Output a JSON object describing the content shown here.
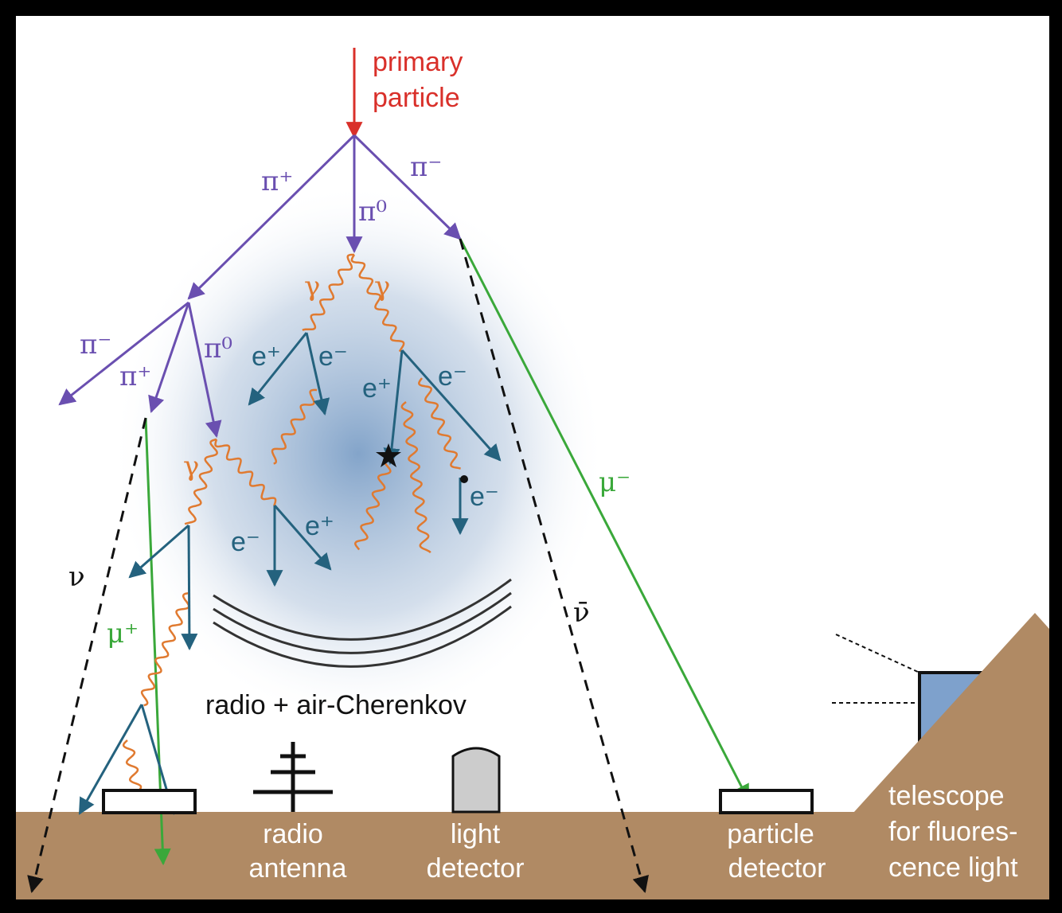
{
  "primary_particle": [
    "primary",
    "particle"
  ],
  "particles": {
    "pi_plus": "π⁺",
    "pi_zero": "π⁰",
    "pi_minus": "π⁻",
    "gamma": "γ",
    "e_plus": "e⁺",
    "e_minus": "e⁻",
    "mu_minus": "μ⁻",
    "mu_plus": "μ⁺",
    "nu": "ν",
    "nu_bar": "ν̄"
  },
  "shower_label": "radio + air-Cherenkov",
  "detectors": [
    {
      "label": [
        "radio",
        "antenna"
      ]
    },
    {
      "label": [
        "light",
        "detector"
      ]
    },
    {
      "label": [
        "particle",
        "detector"
      ]
    },
    {
      "label": [
        "telescope",
        "for fluores-",
        "cence light"
      ]
    }
  ]
}
